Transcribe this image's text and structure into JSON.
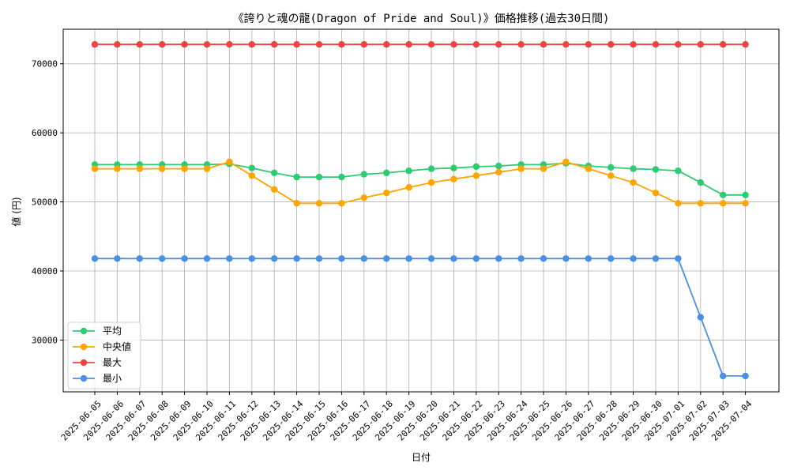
{
  "chart_data": {
    "type": "line",
    "title": "《誇りと魂の龍(Dragon of Pride and Soul)》価格推移(過去30日間)",
    "xlabel": "日付",
    "ylabel": "値 (円)",
    "ylim": [
      22500,
      75000
    ],
    "yticks": [
      30000,
      40000,
      50000,
      60000,
      70000
    ],
    "grid": true,
    "legend_position": "bottom-left",
    "categories": [
      "2025-06-05",
      "2025-06-06",
      "2025-06-07",
      "2025-06-08",
      "2025-06-09",
      "2025-06-10",
      "2025-06-11",
      "2025-06-12",
      "2025-06-13",
      "2025-06-14",
      "2025-06-15",
      "2025-06-16",
      "2025-06-17",
      "2025-06-18",
      "2025-06-19",
      "2025-06-20",
      "2025-06-21",
      "2025-06-22",
      "2025-06-23",
      "2025-06-24",
      "2025-06-25",
      "2025-06-26",
      "2025-06-27",
      "2025-06-28",
      "2025-06-29",
      "2025-06-30",
      "2025-07-01",
      "2025-07-02",
      "2025-07-03",
      "2025-07-04"
    ],
    "series": [
      {
        "name": "平均",
        "color": "#2ecc71",
        "values": [
          55400,
          55400,
          55400,
          55400,
          55400,
          55400,
          55500,
          54900,
          54200,
          53600,
          53600,
          53600,
          54000,
          54200,
          54500,
          54800,
          54900,
          55100,
          55200,
          55400,
          55400,
          55600,
          55200,
          55000,
          54800,
          54700,
          54500,
          52800,
          51000,
          51000
        ]
      },
      {
        "name": "中央値",
        "color": "#ffa500",
        "values": [
          54800,
          54800,
          54800,
          54800,
          54800,
          54800,
          55800,
          53800,
          51800,
          49800,
          49800,
          49800,
          50600,
          51300,
          52100,
          52800,
          53300,
          53800,
          54300,
          54800,
          54800,
          55800,
          54800,
          53800,
          52800,
          51300,
          49800,
          49800,
          49800,
          49800
        ]
      },
      {
        "name": "最大",
        "color": "#ef4444",
        "values": [
          72800,
          72800,
          72800,
          72800,
          72800,
          72800,
          72800,
          72800,
          72800,
          72800,
          72800,
          72800,
          72800,
          72800,
          72800,
          72800,
          72800,
          72800,
          72800,
          72800,
          72800,
          72800,
          72800,
          72800,
          72800,
          72800,
          72800,
          72800,
          72800,
          72800
        ]
      },
      {
        "name": "最小",
        "color": "#4a90e2",
        "values": [
          41800,
          41800,
          41800,
          41800,
          41800,
          41800,
          41800,
          41800,
          41800,
          41800,
          41800,
          41800,
          41800,
          41800,
          41800,
          41800,
          41800,
          41800,
          41800,
          41800,
          41800,
          41800,
          41800,
          41800,
          41800,
          41800,
          41800,
          33300,
          24800,
          24800
        ]
      }
    ]
  }
}
